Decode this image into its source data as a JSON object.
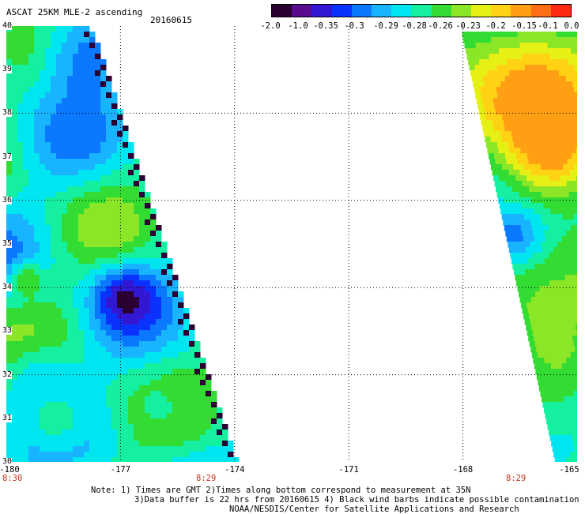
{
  "header": {
    "title": "ASCAT 25KM MLE-2 ascending",
    "date": "20160615"
  },
  "colorbar": {
    "labels": [
      "-2.0",
      "-1.0",
      "-0.35",
      "-0.3",
      "-0.29",
      "-0.28",
      "-0.26",
      "-0.23",
      "-0.2",
      "-0.15",
      "-0.1",
      "0.0"
    ],
    "colors": [
      "#2a0032",
      "#5a0a8c",
      "#3218d2",
      "#0a32ff",
      "#0a78ff",
      "#18b4ff",
      "#00e6f0",
      "#14f0a0",
      "#32dc32",
      "#8ce628",
      "#e6f014",
      "#ffd214",
      "#ffa014",
      "#ff6e14",
      "#ff2a14"
    ]
  },
  "axes": {
    "lat_labels": [
      "40",
      "39",
      "38",
      "37",
      "36",
      "35",
      "34",
      "33",
      "32",
      "31",
      "30"
    ],
    "lon_labels": [
      "-180",
      "-177",
      "-174",
      "-171",
      "-168",
      "-165"
    ],
    "lat_range": [
      30,
      40
    ],
    "lon_range": [
      -180,
      -165
    ]
  },
  "time_labels": {
    "left": "8:30",
    "middle": "8:29",
    "right": "8:29"
  },
  "notes": {
    "line1": "Note: 1) Times are GMT 2)Times along bottom correspond to measurement at 35N",
    "line2": "3)Data buffer is 22 hrs from 20160615 4) Black wind barbs indicate possible contamination",
    "line3": "NOAA/NESDIS/Center for Satellite Applications and Research"
  }
}
